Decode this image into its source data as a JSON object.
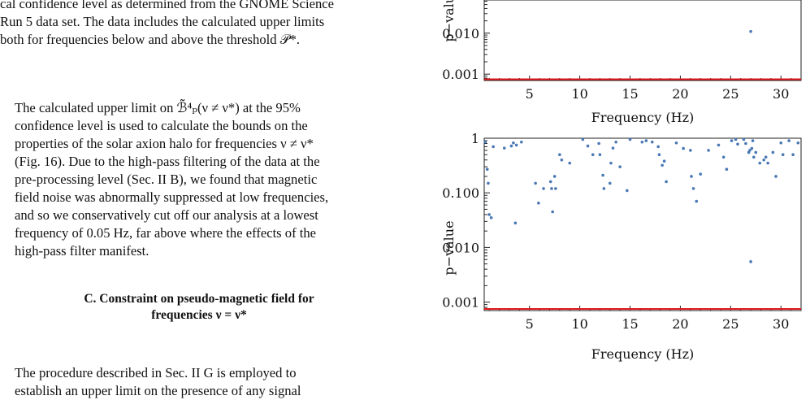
{
  "text_column": {
    "para1_lines": [
      "cal confidence level as determined from the GNOME Science",
      "Run 5 data set. The data includes the calculated upper limits",
      "both for frequencies below and above the threshold 𝒫*."
    ],
    "para2_lines": [
      "The calculated upper limit on ℬ̃⁴ₚ(ν ≠ ν*) at the 95%",
      "confidence level is used to calculate the bounds on the",
      "properties of the solar axion halo for frequencies ν ≠ ν*",
      "(Fig. 16). Due to the high-pass filtering of the data at the",
      "pre-processing level (Sec. II B), we found that magnetic",
      "field noise was abnormally suppressed at low frequencies,",
      "and so we conservatively cut off our analysis at a lowest",
      "frequency of 0.05 Hz, far above where the effects of the",
      "high-pass filter manifest."
    ],
    "heading_lines": [
      "C.   Constraint on pseudo-magnetic field for",
      "frequencies ν = ν*"
    ],
    "para3_lines": [
      "The procedure described in Sec. II G is employed to",
      "establish an upper limit on the presence of any signal"
    ]
  },
  "chart_data": [
    {
      "type": "scatter",
      "xlabel": "Frequency (Hz)",
      "ylabel": "p−value",
      "y_scale": "log",
      "ylim": [
        0.0007,
        1
      ],
      "xlim": [
        0.5,
        32
      ],
      "x_ticks": [
        "5",
        "10",
        "15",
        "20",
        "25",
        "30"
      ],
      "y_ticks": [
        "0.010",
        "0.001"
      ],
      "threshold_line": 0.00075,
      "points": [
        [
          27.0,
          0.011
        ]
      ],
      "colors": {
        "points": "#4a78b5",
        "threshold": "#e31a1c"
      }
    },
    {
      "type": "scatter",
      "xlabel": "Frequency (Hz)",
      "ylabel": "p−value",
      "y_scale": "log",
      "ylim": [
        0.0007,
        1
      ],
      "xlim": [
        0.5,
        32
      ],
      "x_ticks": [
        "5",
        "10",
        "15",
        "20",
        "25",
        "30"
      ],
      "y_ticks": [
        "1",
        "0.100",
        "0.010",
        "0.001"
      ],
      "threshold_line": 0.00075,
      "colors": {
        "points": "#4a78b5",
        "threshold": "#e31a1c"
      },
      "points": [
        [
          0.6,
          0.85
        ],
        [
          0.8,
          0.27
        ],
        [
          0.9,
          0.15
        ],
        [
          1.0,
          0.04
        ],
        [
          1.2,
          0.035
        ],
        [
          1.4,
          0.7
        ],
        [
          2.5,
          0.66
        ],
        [
          3.2,
          0.72
        ],
        [
          3.4,
          0.82
        ],
        [
          3.6,
          0.028
        ],
        [
          3.7,
          0.75
        ],
        [
          4.2,
          0.85
        ],
        [
          5.6,
          0.15
        ],
        [
          5.9,
          0.065
        ],
        [
          6.4,
          0.12
        ],
        [
          7.1,
          0.16
        ],
        [
          7.2,
          0.12
        ],
        [
          7.3,
          0.045
        ],
        [
          7.5,
          0.2
        ],
        [
          7.6,
          0.12
        ],
        [
          8.0,
          0.5
        ],
        [
          8.2,
          0.4
        ],
        [
          9.0,
          0.35
        ],
        [
          10.3,
          0.95
        ],
        [
          10.8,
          0.72
        ],
        [
          11.3,
          0.5
        ],
        [
          11.9,
          0.8
        ],
        [
          12.0,
          0.5
        ],
        [
          12.3,
          0.21
        ],
        [
          12.4,
          0.12
        ],
        [
          13.0,
          0.15
        ],
        [
          13.1,
          0.35
        ],
        [
          13.3,
          0.66
        ],
        [
          13.6,
          0.85
        ],
        [
          14.0,
          0.3
        ],
        [
          14.7,
          0.11
        ],
        [
          15.0,
          0.95
        ],
        [
          16.2,
          0.85
        ],
        [
          16.6,
          0.9
        ],
        [
          17.2,
          0.85
        ],
        [
          17.8,
          0.7
        ],
        [
          17.9,
          0.5
        ],
        [
          18.2,
          0.32
        ],
        [
          18.4,
          0.38
        ],
        [
          18.6,
          0.16
        ],
        [
          19.6,
          0.82
        ],
        [
          20.3,
          0.65
        ],
        [
          21.0,
          0.6
        ],
        [
          21.1,
          0.2
        ],
        [
          21.3,
          0.12
        ],
        [
          21.6,
          0.07
        ],
        [
          22.0,
          0.22
        ],
        [
          22.8,
          0.6
        ],
        [
          23.8,
          0.75
        ],
        [
          24.3,
          0.45
        ],
        [
          24.6,
          0.27
        ],
        [
          25.1,
          0.9
        ],
        [
          25.5,
          0.95
        ],
        [
          25.7,
          0.78
        ],
        [
          26.3,
          0.95
        ],
        [
          26.5,
          0.8
        ],
        [
          26.8,
          0.55
        ],
        [
          26.9,
          0.6
        ],
        [
          27.0,
          0.0055
        ],
        [
          27.1,
          0.65
        ],
        [
          27.2,
          0.9
        ],
        [
          27.3,
          0.45
        ],
        [
          27.5,
          0.55
        ],
        [
          27.9,
          0.35
        ],
        [
          28.3,
          0.4
        ],
        [
          28.5,
          0.45
        ],
        [
          28.7,
          0.35
        ],
        [
          29.2,
          0.55
        ],
        [
          29.5,
          0.2
        ],
        [
          30.0,
          0.82
        ],
        [
          30.2,
          0.5
        ],
        [
          30.8,
          0.9
        ],
        [
          31.2,
          0.5
        ],
        [
          31.7,
          0.82
        ]
      ]
    }
  ]
}
